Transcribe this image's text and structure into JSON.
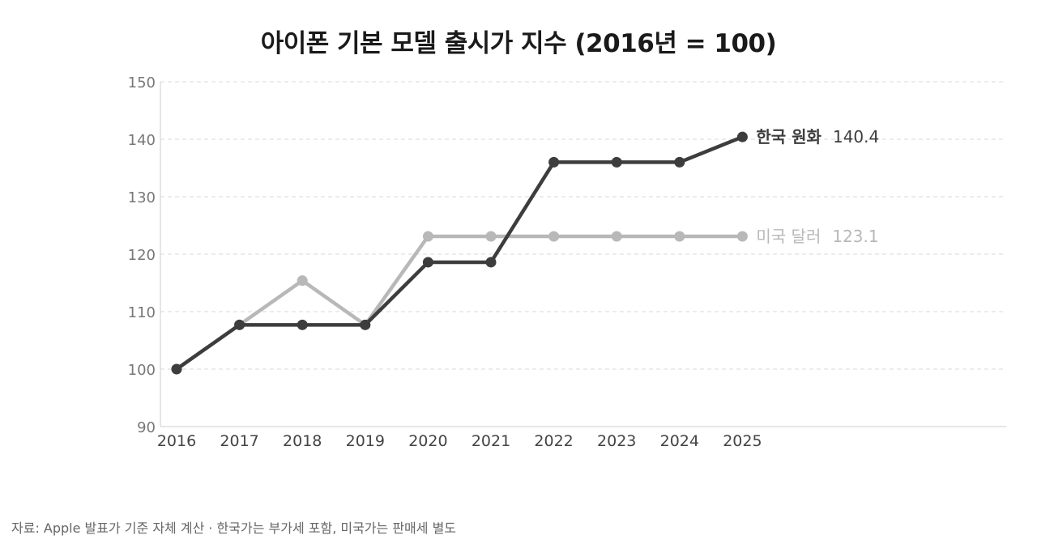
{
  "title": "아이폰 기본 모델 출시가 지수 (2016년 = 100)",
  "source_note": "자료: Apple 발표가 기준 자체 계산 · 한국가는 부가세 포함, 미국가는 판매세 별도",
  "chart_data": {
    "type": "line",
    "title": "아이폰 기본 모델 출시가 지수 (2016년 = 100)",
    "x": [
      "2016",
      "2017",
      "2018",
      "2019",
      "2020",
      "2021",
      "2022",
      "2023",
      "2024",
      "2025"
    ],
    "y_ticks": [
      90,
      100,
      110,
      120,
      130,
      140,
      150
    ],
    "ylim": [
      90,
      150
    ],
    "grid": true,
    "legend": "end-of-line labels",
    "series": [
      {
        "name": "한국 원화",
        "end_label": "140.4",
        "color": "#3d3d3d",
        "values": [
          100,
          107.7,
          107.7,
          107.7,
          118.6,
          118.6,
          136.0,
          136.0,
          136.0,
          140.4
        ]
      },
      {
        "name": "미국 달러",
        "end_label": "123.1",
        "color": "#b8b8b8",
        "values": [
          100,
          107.7,
          115.4,
          107.7,
          123.1,
          123.1,
          123.1,
          123.1,
          123.1,
          123.1
        ]
      }
    ]
  }
}
